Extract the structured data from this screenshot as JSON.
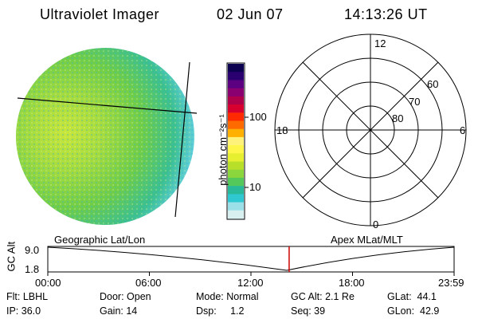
{
  "header": {
    "title": "Ultraviolet Imager",
    "date": "02 Jun 07",
    "time": "14:13:26 UT"
  },
  "colorbar": {
    "unit_label": "photon cm⁻²s⁻¹",
    "tick_100": "100",
    "tick_10": "10",
    "colors": [
      "#d9f0f0",
      "#9be0e8",
      "#2fc7d0",
      "#27b99a",
      "#54c85a",
      "#8ad63c",
      "#b8e02a",
      "#e6ef30",
      "#fff64a",
      "#fff27a",
      "#ffb000",
      "#ff6a00",
      "#ff2a00",
      "#d8002f",
      "#b0004a",
      "#8a0070",
      "#5a0080",
      "#2a0070",
      "#0c0050"
    ]
  },
  "polar_plot": {
    "lat_labels": [
      "60",
      "70",
      "80"
    ],
    "mlt_labels": {
      "top": "12",
      "left": "18",
      "right": "6",
      "bottom": "0"
    }
  },
  "timeline": {
    "left_title": "Geographic Lat/Lon",
    "right_title": "Apex MLat/MLT",
    "axis_title": "GC Alt",
    "y_max": "9.0",
    "y_min": "1.8",
    "x_ticks": [
      "00:00",
      "06:00",
      "12:00",
      "18:00",
      "23:59"
    ],
    "current_time_fraction": 0.594,
    "marker_color": "#cc0000"
  },
  "footer": {
    "flt": "Flt: LBHL",
    "ip": "IP: 36.0",
    "door": "Door: Open",
    "gain": "Gain: 14",
    "mode": "Mode: Normal",
    "dsp": "Dsp:     1.2",
    "gc_alt": "GC Alt: 2.1 Re",
    "seq": "Seq: 39",
    "glat": "GLat:  44.1",
    "glon": "GLon:  42.9"
  }
}
